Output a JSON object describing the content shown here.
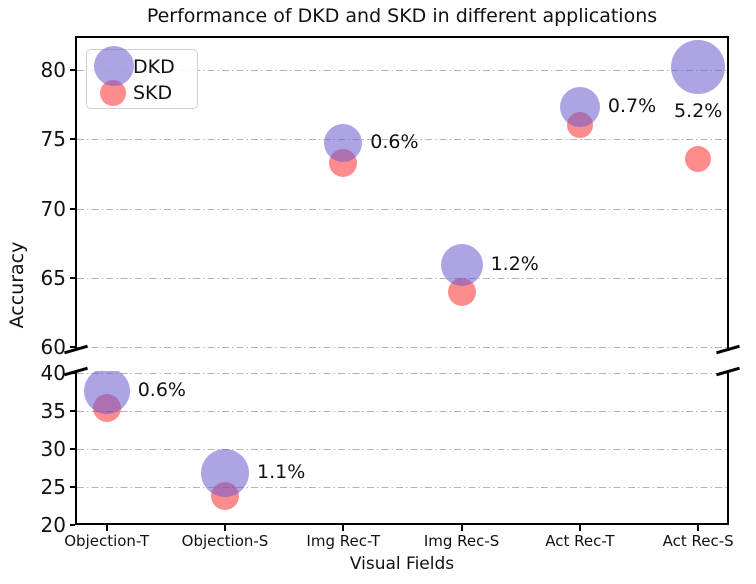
{
  "title": "Performance of DKD and SKD in different applications",
  "legend": {
    "items": [
      {
        "label": "DKD"
      },
      {
        "label": "SKD"
      }
    ]
  },
  "chart_data": {
    "type": "scatter",
    "title": "Performance of DKD and SKD in different applications",
    "xlabel": "Visual Fields",
    "ylabel": "Accuracy",
    "categories": [
      "Objection-T",
      "Objection-S",
      "Img Rec-T",
      "Img Rec-S",
      "Act Rec-T",
      "Act Rec-S"
    ],
    "series": [
      {
        "name": "DKD",
        "color": "rgba(106,90,205,0.55)",
        "values": [
          37.6,
          26.8,
          74.7,
          65.9,
          77.3,
          80.2
        ],
        "marker_radius_px": [
          23,
          24,
          19,
          21,
          20,
          27
        ]
      },
      {
        "name": "SKD",
        "color": "rgba(255,0,0,0.45)",
        "values": [
          35.3,
          23.8,
          73.3,
          64.0,
          76.0,
          73.6
        ],
        "marker_radius_px": [
          14,
          14,
          14,
          14,
          13,
          13
        ]
      }
    ],
    "annotations": [
      {
        "category": "Objection-T",
        "text": "0.6%",
        "placement": "right"
      },
      {
        "category": "Objection-S",
        "text": "1.1%",
        "placement": "right"
      },
      {
        "category": "Img Rec-T",
        "text": "0.6%",
        "placement": "right"
      },
      {
        "category": "Img Rec-S",
        "text": "1.2%",
        "placement": "right"
      },
      {
        "category": "Act Rec-T",
        "text": "0.7%",
        "placement": "right"
      },
      {
        "category": "Act Rec-S",
        "text": "5.2%",
        "placement": "below"
      }
    ],
    "y_axis": {
      "broken": true,
      "top_panel": {
        "range": [
          60,
          82.5
        ],
        "ticks": [
          80,
          75,
          70,
          65,
          60
        ]
      },
      "bottom_panel": {
        "range": [
          20,
          40
        ],
        "ticks": [
          40,
          35,
          30,
          25,
          20
        ]
      }
    },
    "grid": {
      "horizontal": true,
      "style": "dash-dot",
      "color": "#b3b3b3"
    },
    "legend_position": "upper left"
  }
}
